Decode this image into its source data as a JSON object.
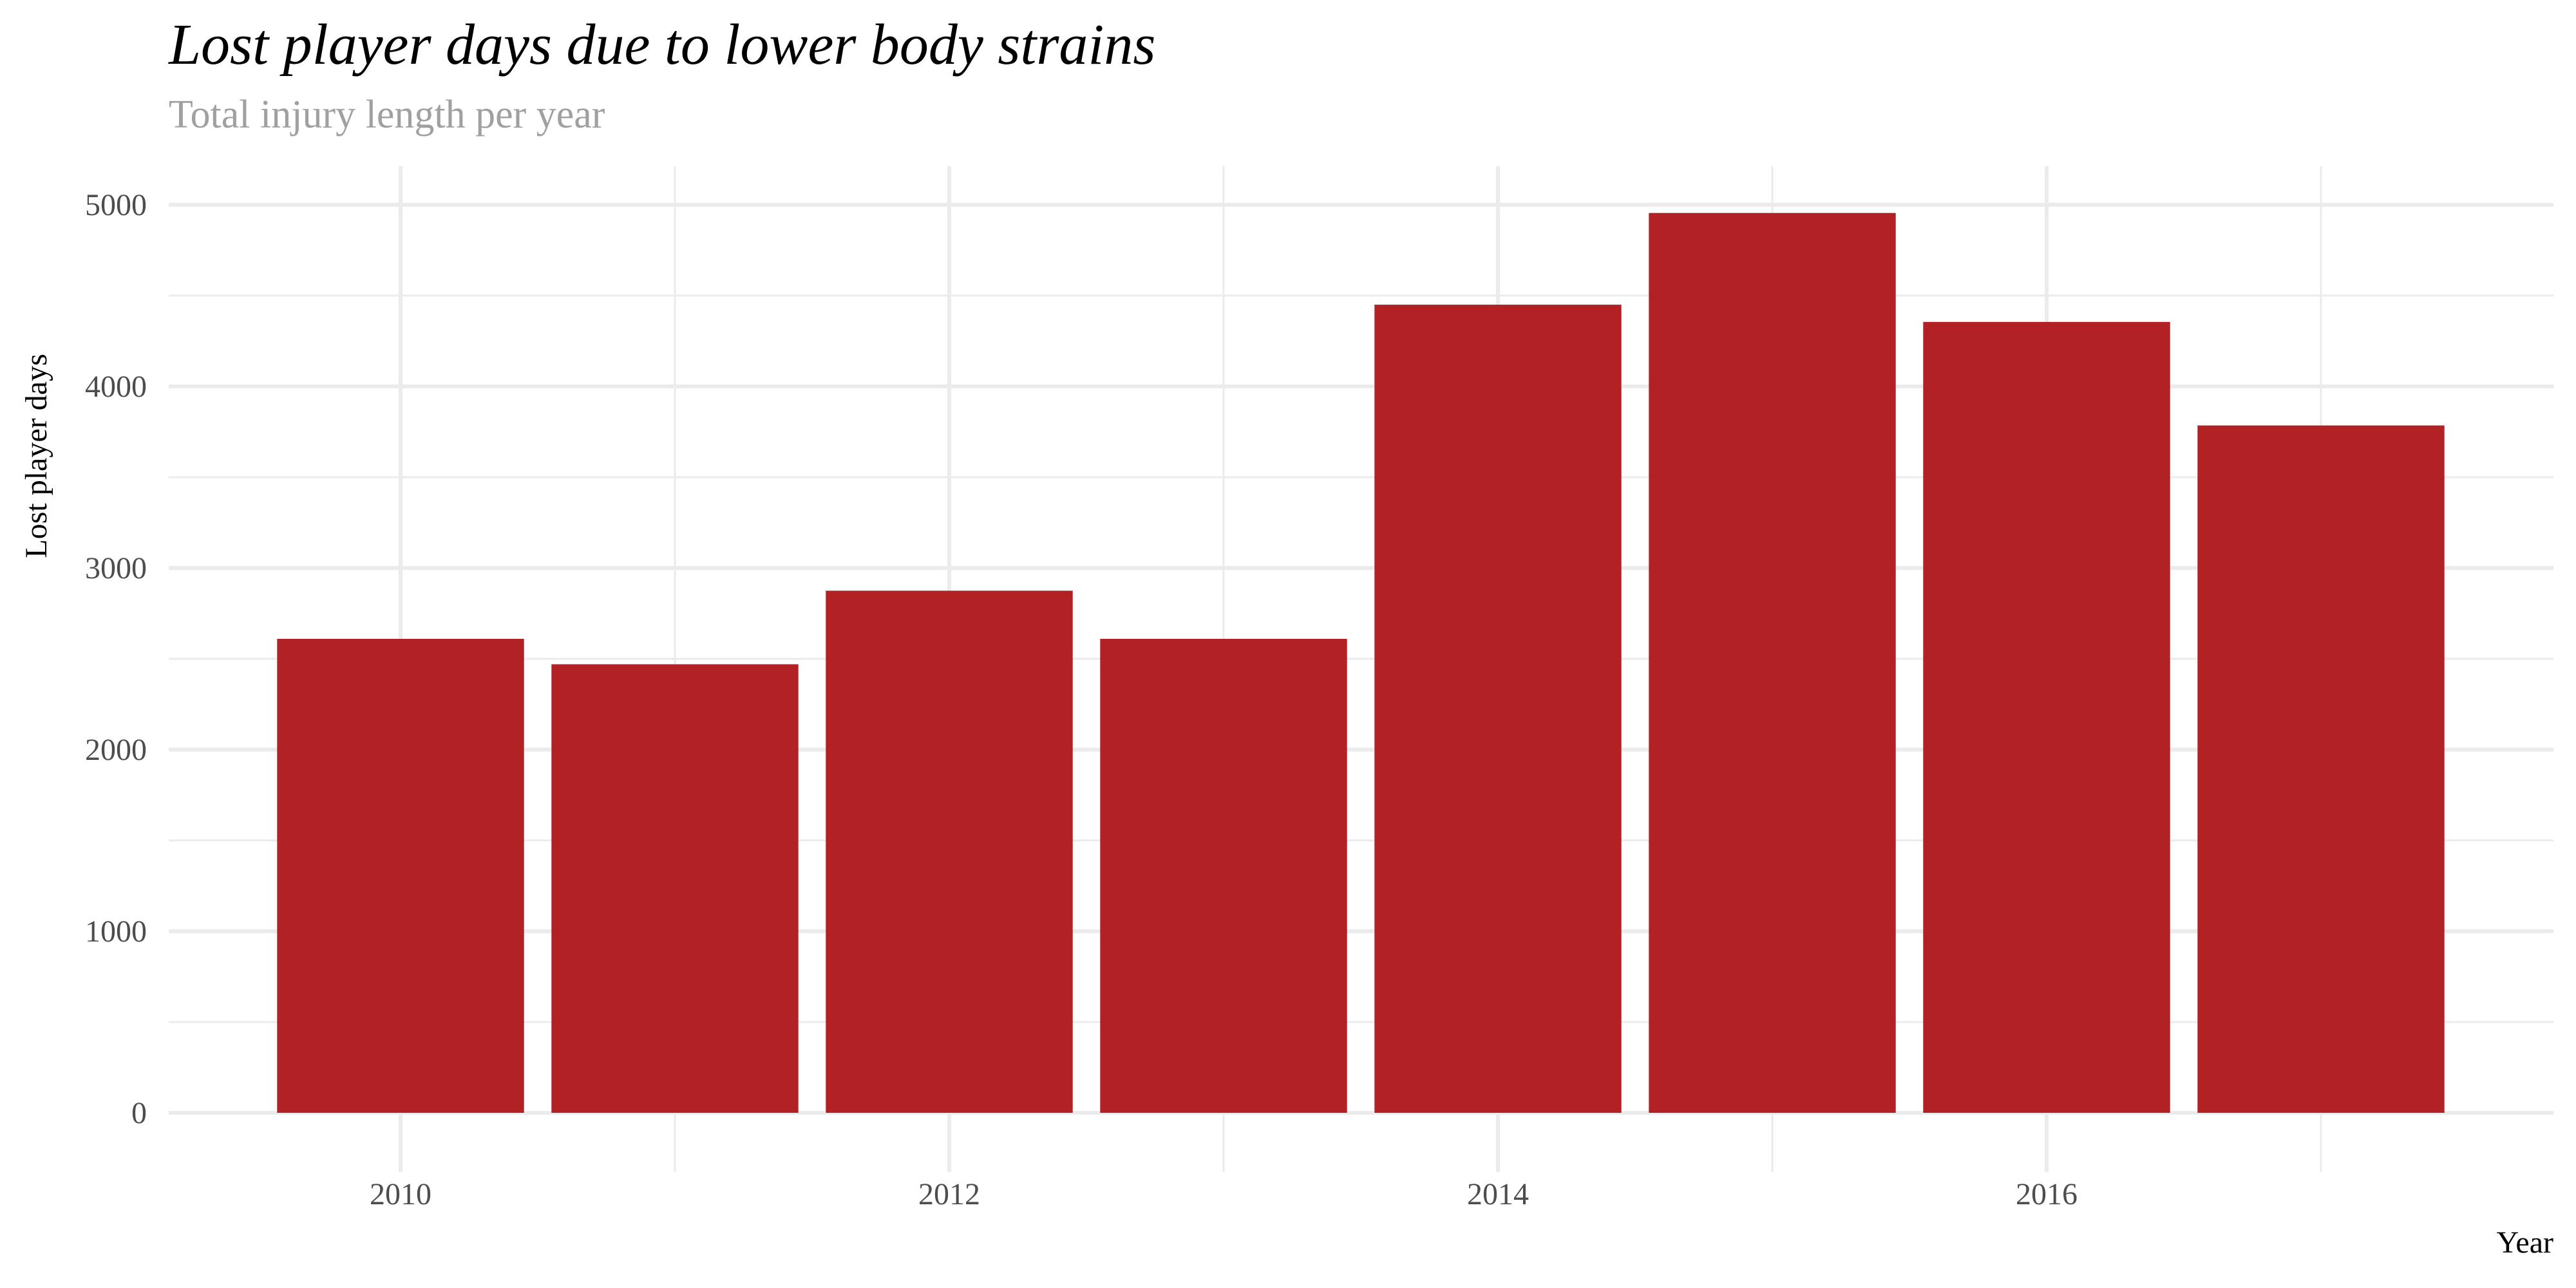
{
  "chart_data": {
    "type": "bar",
    "title": "Lost player days due to lower body strains",
    "subtitle": "Total injury length per year",
    "xlabel": "Year",
    "ylabel": "Lost player days",
    "categories": [
      2010,
      2011,
      2012,
      2013,
      2014,
      2015,
      2016,
      2017
    ],
    "values": [
      2610,
      2470,
      2875,
      2610,
      4450,
      4955,
      4355,
      3785
    ],
    "x_ticks": [
      2010,
      2012,
      2014,
      2016
    ],
    "y_ticks": [
      0,
      1000,
      2000,
      3000,
      4000,
      5000
    ],
    "xlim": [
      2009.15,
      2017.8
    ],
    "ylim": [
      0,
      5200
    ],
    "grid": true,
    "legend": "none",
    "colors": {
      "bar": "#B22124",
      "grid": "#EBEBEB",
      "tick_label": "#4D4D4D",
      "subtitle": "#A0A0A0",
      "axis_title": "#000000"
    }
  }
}
